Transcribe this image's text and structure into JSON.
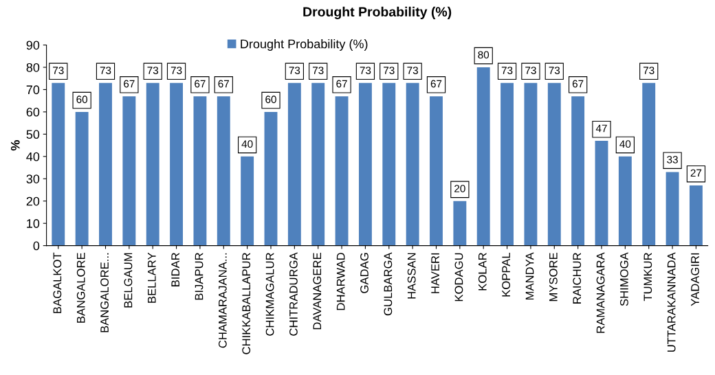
{
  "chart_data": {
    "type": "bar",
    "title": "Drought Probability (%)",
    "ylabel": "%",
    "categories": [
      "BAGALKOT",
      "BANGALORE",
      "BANGALORE...",
      "BELGAUM",
      "BELLARY",
      "BIDAR",
      "BIJAPUR",
      "CHAMARAJANA...",
      "CHIKKABALLAPUR",
      "CHIKMAGALUR",
      "CHITRADURGA",
      "DAVANAGERE",
      "DHARWAD",
      "GADAG",
      "GULBARGA",
      "HASSAN",
      "HAVERI",
      "KODAGU",
      "KOLAR",
      "KOPPAL",
      "MANDYA",
      "MYSORE",
      "RAICHUR",
      "RAMANAGARA",
      "SHIMOGA",
      "TUMKUR",
      "UTTARAKANNADA",
      "YADAGIRI"
    ],
    "series": [
      {
        "name": "Drought Probability (%)",
        "color": "#4f81bd",
        "values": [
          73,
          60,
          73,
          67,
          73,
          73,
          67,
          67,
          40,
          60,
          73,
          73,
          67,
          73,
          73,
          73,
          67,
          20,
          80,
          73,
          73,
          73,
          67,
          47,
          40,
          73,
          33,
          27
        ]
      }
    ],
    "ylim": [
      0,
      90
    ],
    "yticks": [
      0,
      10,
      20,
      30,
      40,
      50,
      60,
      70,
      80,
      90
    ],
    "data_labels": true,
    "legend": "top",
    "grid": false
  }
}
